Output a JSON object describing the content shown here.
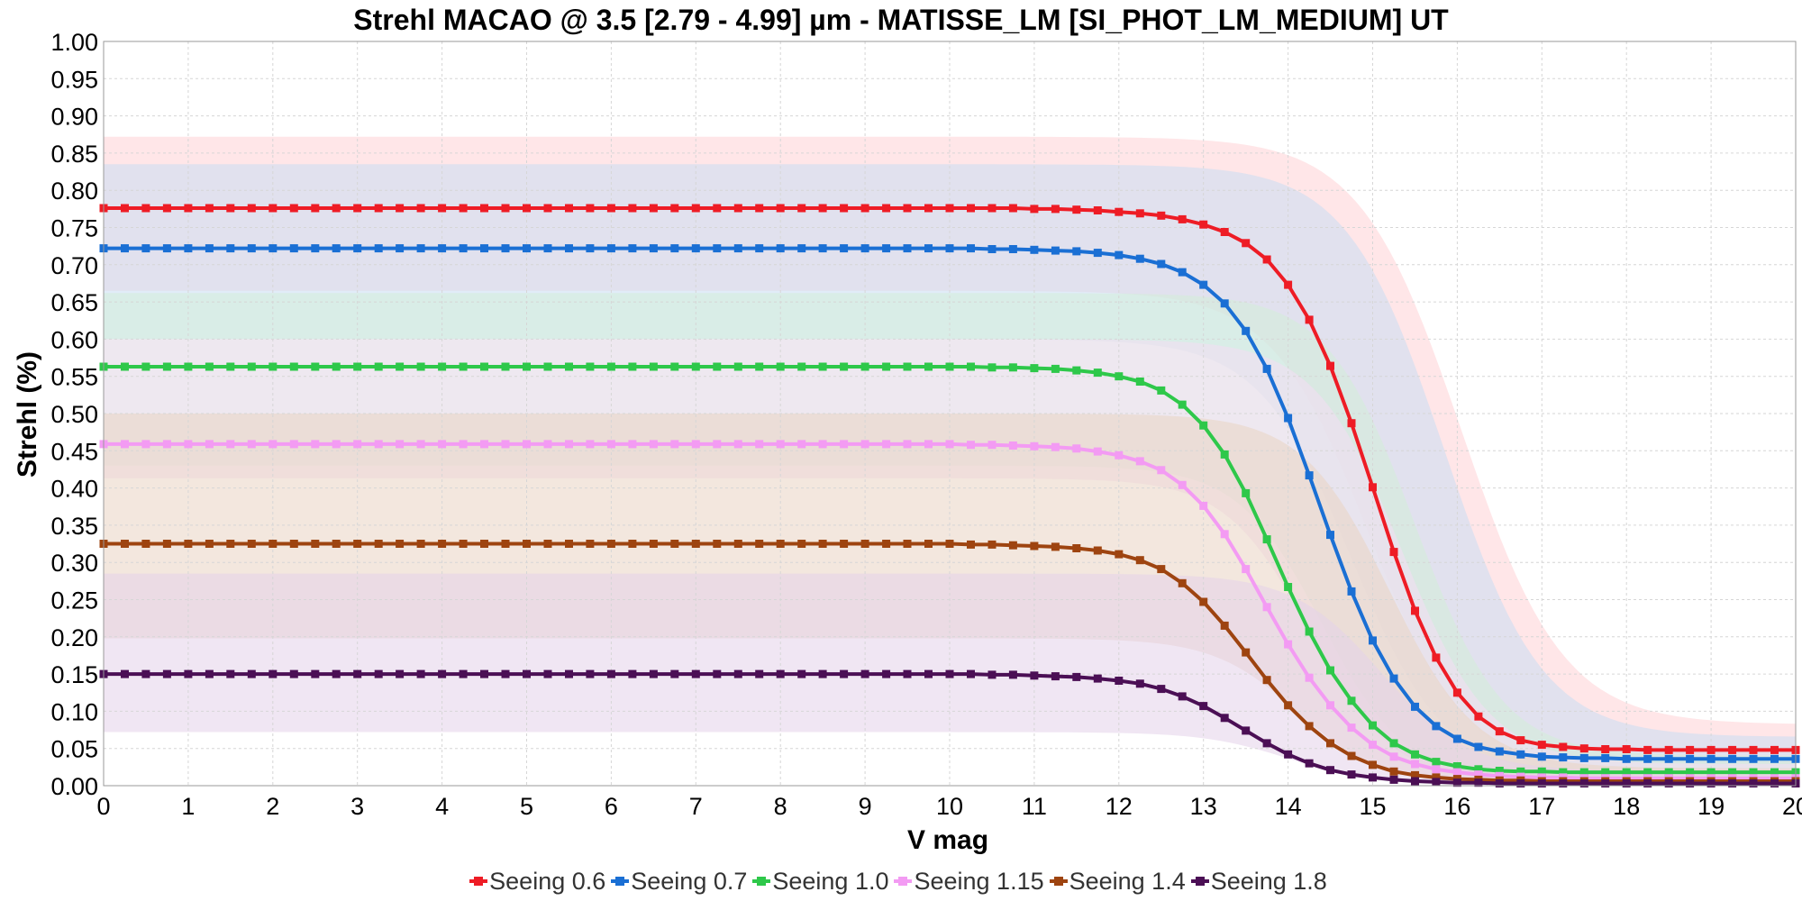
{
  "chart_data": {
    "type": "line",
    "title": "Strehl MACAO @ 3.5 [2.79 - 4.99] µm - MATISSE_LM [SI_PHOT_LM_MEDIUM] UT",
    "xlabel": "V mag",
    "ylabel": "Strehl (%)",
    "xlim": [
      0,
      20
    ],
    "ylim": [
      0,
      1
    ],
    "x_ticks": [
      "0",
      "1",
      "2",
      "3",
      "4",
      "5",
      "6",
      "7",
      "8",
      "9",
      "10",
      "11",
      "12",
      "13",
      "14",
      "15",
      "16",
      "17",
      "18",
      "19",
      "20"
    ],
    "y_ticks": [
      "0.00",
      "0.05",
      "0.10",
      "0.15",
      "0.20",
      "0.25",
      "0.30",
      "0.35",
      "0.40",
      "0.45",
      "0.50",
      "0.55",
      "0.60",
      "0.65",
      "0.70",
      "0.75",
      "0.80",
      "0.85",
      "0.90",
      "0.95",
      "1.00"
    ],
    "grid": true,
    "legend_position": "bottom",
    "x": [
      0,
      0.25,
      0.5,
      0.75,
      1,
      1.25,
      1.5,
      1.75,
      2,
      2.25,
      2.5,
      2.75,
      3,
      3.25,
      3.5,
      3.75,
      4,
      4.25,
      4.5,
      4.75,
      5,
      5.25,
      5.5,
      5.75,
      6,
      6.25,
      6.5,
      6.75,
      7,
      7.25,
      7.5,
      7.75,
      8,
      8.25,
      8.5,
      8.75,
      9,
      9.25,
      9.5,
      9.75,
      10,
      10.25,
      10.5,
      10.75,
      11,
      11.25,
      11.5,
      11.75,
      12,
      12.25,
      12.5,
      12.75,
      13,
      13.25,
      13.5,
      13.75,
      14,
      14.25,
      14.5,
      14.75,
      15,
      15.25,
      15.5,
      15.75,
      16,
      16.25,
      16.5,
      16.75,
      17,
      17.25,
      17.5,
      17.75,
      18,
      18.25,
      18.5,
      18.75,
      19,
      19.25,
      19.5,
      19.75,
      20
    ],
    "series": [
      {
        "name": "Seeing 0.6",
        "color": "#ee1c25",
        "band_color": "#ffd2d5",
        "plateau": 0.776,
        "floor": 0.048,
        "mid": 15.45,
        "width": 0.52,
        "band_upper": 0.872,
        "band_lower": 0.665,
        "values": [
          0.776,
          0.776,
          0.776,
          0.776,
          0.776,
          0.776,
          0.776,
          0.776,
          0.776,
          0.776,
          0.776,
          0.776,
          0.776,
          0.776,
          0.776,
          0.776,
          0.776,
          0.776,
          0.776,
          0.776,
          0.776,
          0.776,
          0.776,
          0.776,
          0.776,
          0.776,
          0.776,
          0.776,
          0.776,
          0.776,
          0.776,
          0.776,
          0.776,
          0.776,
          0.776,
          0.776,
          0.776,
          0.776,
          0.776,
          0.776,
          0.776,
          0.776,
          0.776,
          0.776,
          0.775,
          0.775,
          0.774,
          0.773,
          0.771,
          0.769,
          0.766,
          0.761,
          0.754,
          0.744,
          0.729,
          0.707,
          0.673,
          0.626,
          0.564,
          0.487,
          0.401,
          0.314,
          0.235,
          0.172,
          0.125,
          0.093,
          0.073,
          0.061,
          0.055,
          0.052,
          0.05,
          0.049,
          0.049,
          0.048,
          0.048,
          0.048,
          0.048,
          0.048,
          0.048,
          0.048,
          0.048
        ]
      },
      {
        "name": "Seeing 0.7",
        "color": "#1a6fd4",
        "band_color": "#c9dcf2",
        "plateau": 0.722,
        "floor": 0.036,
        "mid": 15.25,
        "width": 0.5,
        "band_upper": 0.835,
        "band_lower": 0.6,
        "values": [
          0.722,
          0.722,
          0.722,
          0.722,
          0.722,
          0.722,
          0.722,
          0.722,
          0.722,
          0.722,
          0.722,
          0.722,
          0.722,
          0.722,
          0.722,
          0.722,
          0.722,
          0.722,
          0.722,
          0.722,
          0.722,
          0.722,
          0.722,
          0.722,
          0.722,
          0.722,
          0.722,
          0.722,
          0.722,
          0.722,
          0.722,
          0.722,
          0.722,
          0.722,
          0.722,
          0.722,
          0.722,
          0.722,
          0.722,
          0.722,
          0.722,
          0.722,
          0.721,
          0.721,
          0.72,
          0.719,
          0.718,
          0.716,
          0.713,
          0.708,
          0.701,
          0.69,
          0.673,
          0.648,
          0.611,
          0.56,
          0.494,
          0.417,
          0.337,
          0.261,
          0.195,
          0.144,
          0.106,
          0.08,
          0.063,
          0.052,
          0.046,
          0.042,
          0.039,
          0.038,
          0.037,
          0.037,
          0.036,
          0.036,
          0.036,
          0.036,
          0.036,
          0.036,
          0.036,
          0.036,
          0.036
        ]
      },
      {
        "name": "Seeing 1.0",
        "color": "#2ec84a",
        "band_color": "#d3efd8",
        "plateau": 0.563,
        "floor": 0.018,
        "mid": 14.9,
        "width": 0.45,
        "band_upper": 0.662,
        "band_lower": 0.43,
        "values": [
          0.563,
          0.563,
          0.563,
          0.563,
          0.563,
          0.563,
          0.563,
          0.563,
          0.563,
          0.563,
          0.563,
          0.563,
          0.563,
          0.563,
          0.563,
          0.563,
          0.563,
          0.563,
          0.563,
          0.563,
          0.563,
          0.563,
          0.563,
          0.563,
          0.563,
          0.563,
          0.563,
          0.563,
          0.563,
          0.563,
          0.563,
          0.563,
          0.563,
          0.563,
          0.563,
          0.563,
          0.563,
          0.563,
          0.563,
          0.563,
          0.563,
          0.563,
          0.562,
          0.562,
          0.561,
          0.56,
          0.558,
          0.555,
          0.55,
          0.543,
          0.531,
          0.512,
          0.484,
          0.445,
          0.393,
          0.331,
          0.267,
          0.207,
          0.155,
          0.114,
          0.081,
          0.057,
          0.042,
          0.032,
          0.026,
          0.022,
          0.02,
          0.019,
          0.019,
          0.018,
          0.018,
          0.018,
          0.018,
          0.018,
          0.018,
          0.018,
          0.018,
          0.018,
          0.018,
          0.018,
          0.018
        ]
      },
      {
        "name": "Seeing 1.15",
        "color": "#f39bf3",
        "band_color": "#f4dcf4",
        "plateau": 0.459,
        "floor": 0.01,
        "mid": 14.75,
        "width": 0.45,
        "band_upper": 0.6,
        "band_lower": 0.413,
        "values": [
          0.459,
          0.459,
          0.459,
          0.459,
          0.459,
          0.459,
          0.459,
          0.459,
          0.459,
          0.459,
          0.459,
          0.459,
          0.459,
          0.459,
          0.459,
          0.459,
          0.459,
          0.459,
          0.459,
          0.459,
          0.459,
          0.459,
          0.459,
          0.459,
          0.459,
          0.459,
          0.459,
          0.459,
          0.459,
          0.459,
          0.459,
          0.459,
          0.459,
          0.459,
          0.459,
          0.459,
          0.459,
          0.459,
          0.459,
          0.459,
          0.459,
          0.458,
          0.458,
          0.457,
          0.456,
          0.455,
          0.453,
          0.449,
          0.444,
          0.436,
          0.424,
          0.404,
          0.376,
          0.338,
          0.291,
          0.24,
          0.19,
          0.145,
          0.108,
          0.078,
          0.055,
          0.039,
          0.029,
          0.022,
          0.018,
          0.015,
          0.013,
          0.012,
          0.011,
          0.011,
          0.01,
          0.01,
          0.01,
          0.01,
          0.01,
          0.01,
          0.01,
          0.01,
          0.01,
          0.01,
          0.01
        ]
      },
      {
        "name": "Seeing 1.4",
        "color": "#9e4410",
        "band_color": "#ead3c3",
        "plateau": 0.325,
        "floor": 0.006,
        "mid": 14.6,
        "width": 0.45,
        "band_upper": 0.5,
        "band_lower": 0.198,
        "values": [
          0.325,
          0.325,
          0.325,
          0.325,
          0.325,
          0.325,
          0.325,
          0.325,
          0.325,
          0.325,
          0.325,
          0.325,
          0.325,
          0.325,
          0.325,
          0.325,
          0.325,
          0.325,
          0.325,
          0.325,
          0.325,
          0.325,
          0.325,
          0.325,
          0.325,
          0.325,
          0.325,
          0.325,
          0.325,
          0.325,
          0.325,
          0.325,
          0.325,
          0.325,
          0.325,
          0.325,
          0.325,
          0.325,
          0.325,
          0.325,
          0.325,
          0.324,
          0.324,
          0.323,
          0.322,
          0.321,
          0.319,
          0.316,
          0.311,
          0.303,
          0.291,
          0.272,
          0.247,
          0.215,
          0.179,
          0.142,
          0.108,
          0.08,
          0.057,
          0.04,
          0.028,
          0.019,
          0.014,
          0.011,
          0.009,
          0.008,
          0.007,
          0.007,
          0.006,
          0.006,
          0.006,
          0.006,
          0.006,
          0.006,
          0.006,
          0.006,
          0.006,
          0.006,
          0.006,
          0.006,
          0.006
        ]
      },
      {
        "name": "Seeing 1.8",
        "color": "#4b0f55",
        "band_color": "#e3d2ea",
        "plateau": 0.15,
        "floor": 0.003,
        "mid": 14.5,
        "width": 0.45,
        "band_upper": 0.285,
        "band_lower": 0.072,
        "values": [
          0.15,
          0.15,
          0.15,
          0.15,
          0.15,
          0.15,
          0.15,
          0.15,
          0.15,
          0.15,
          0.15,
          0.15,
          0.15,
          0.15,
          0.15,
          0.15,
          0.15,
          0.15,
          0.15,
          0.15,
          0.15,
          0.15,
          0.15,
          0.15,
          0.15,
          0.15,
          0.15,
          0.15,
          0.15,
          0.15,
          0.15,
          0.15,
          0.15,
          0.15,
          0.15,
          0.15,
          0.15,
          0.15,
          0.15,
          0.15,
          0.15,
          0.15,
          0.149,
          0.149,
          0.148,
          0.147,
          0.146,
          0.144,
          0.141,
          0.137,
          0.13,
          0.12,
          0.107,
          0.091,
          0.074,
          0.057,
          0.042,
          0.03,
          0.021,
          0.015,
          0.011,
          0.008,
          0.006,
          0.005,
          0.004,
          0.004,
          0.003,
          0.003,
          0.003,
          0.003,
          0.003,
          0.003,
          0.003,
          0.003,
          0.003,
          0.003,
          0.003,
          0.003,
          0.003,
          0.003,
          0.003
        ]
      }
    ]
  }
}
